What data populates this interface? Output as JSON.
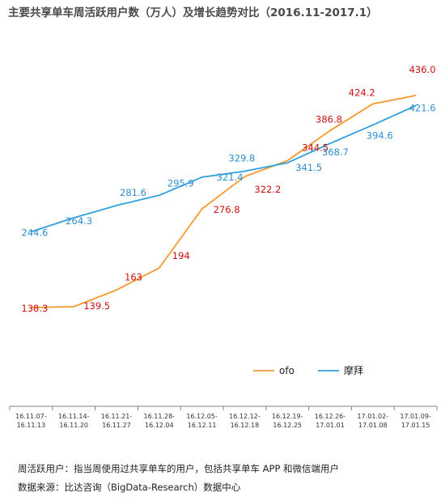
{
  "title": "主要共享单车周活跃用户数（万人）及增长趋势对比（2016.11-2017.1）",
  "chart_data": {
    "type": "line",
    "title": "主要共享单车周活跃用户数（万人）及增长趋势对比（2016.11-2017.1）",
    "categories": [
      [
        "16.11.07-",
        "16.11.13"
      ],
      [
        "16.11.14-",
        "16.11.20"
      ],
      [
        "16.11.21-",
        "16.11.27"
      ],
      [
        "16.11.28-",
        "16.12.04"
      ],
      [
        "16.12.05-",
        "16.12.11"
      ],
      [
        "16.12.12-",
        "16.12.18"
      ],
      [
        "16.12.19-",
        "16.12.25"
      ],
      [
        "16.12.26-",
        "17.01.01"
      ],
      [
        "17.01.02-",
        "17.01.08"
      ],
      [
        "17.01.09-",
        "17.01.15"
      ]
    ],
    "series": [
      {
        "name": "ofo",
        "color": "#f5992b",
        "label_color": "#cc1111",
        "values": [
          138.3,
          139.5,
          163,
          194,
          276.8,
          322.2,
          344.5,
          386.8,
          424.2,
          436.0
        ],
        "labels": [
          "138.3",
          "139.5",
          "163",
          "194",
          "276.8",
          "322.2",
          "344.5",
          "386.8",
          "424.2",
          "436.0"
        ]
      },
      {
        "name": "摩拜",
        "color": "#2ea0e0",
        "label_color": "#2e8fd0",
        "values": [
          244.6,
          264.3,
          281.6,
          295.9,
          321.4,
          329.8,
          341.5,
          368.7,
          394.6,
          421.6
        ],
        "labels": [
          "244.6",
          "264.3",
          "281.6",
          "295.9",
          "321.4",
          "329.8",
          "341.5",
          "368.7",
          "394.6",
          "421.6"
        ]
      }
    ],
    "legend_position": "bottom-right",
    "grid": false
  },
  "footnote": {
    "line1": "周活跃用户：指当周使用过共享单车的用户，包括共享单车 APP 和微信端用户",
    "line2": "数据来源：比达咨询（BigData-Research）数据中心"
  }
}
